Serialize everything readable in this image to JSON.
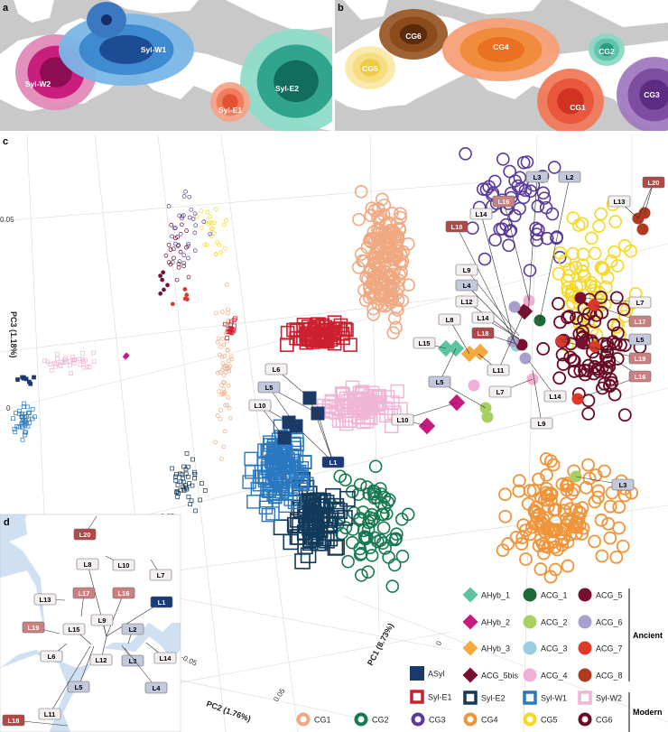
{
  "panels": {
    "a": {
      "letter": "a",
      "regions": [
        "Syl-W2",
        "Syl-W1",
        "Syl-E2",
        "Syl-E1"
      ],
      "colors": {
        "Syl-W2": "#c8187a",
        "Syl-W1": "#3a88d0",
        "Syl-E2": "#2aa088",
        "Syl-E1": "#f07a5a"
      }
    },
    "b": {
      "letter": "b",
      "regions": [
        "CG6",
        "CG5",
        "CG4",
        "CG2",
        "CG1",
        "CG3"
      ],
      "colors": {
        "CG6": "#8a4a1a",
        "CG5": "#f5dc80",
        "CG4": "#f08a3a",
        "CG2": "#5cc4aa",
        "CG1": "#e8553a",
        "CG3": "#7a4a9e"
      }
    },
    "c": {
      "letter": "c"
    },
    "d": {
      "letter": "d",
      "sites": [
        "L20",
        "L8",
        "L10",
        "L7",
        "L13",
        "L17",
        "L16",
        "L1",
        "L9",
        "L19",
        "L15",
        "L2",
        "L6",
        "L12",
        "L3",
        "L14",
        "L5",
        "L4",
        "L11",
        "L18"
      ]
    }
  },
  "chart_data": {
    "type": "scatter",
    "title": "",
    "projection": "3D PCA",
    "xlabel": "PC1 (8.73%)",
    "ylabel": "PC2 (1.76%)",
    "zlabel": "PC3 (1.18%)",
    "ticks": {
      "pc3": [
        "0.05",
        "0"
      ],
      "pc2": [
        "-0.05",
        "0.05"
      ],
      "pc1": [
        "0"
      ],
      "back": [
        "-0.05"
      ]
    },
    "point_labels": [
      "L3",
      "L2",
      "L20",
      "L16",
      "L13",
      "L14",
      "L18",
      "L9",
      "L4",
      "L12",
      "L8",
      "L14",
      "L18",
      "L15",
      "L11",
      "L5",
      "L7",
      "L10",
      "L14",
      "L9",
      "L7",
      "L17",
      "L5",
      "L19",
      "L16",
      "L3",
      "L6",
      "L5",
      "L10",
      "L1"
    ],
    "legend": {
      "ancient_heading": "Ancient",
      "modern_heading": "Modern",
      "ancient": [
        {
          "name": "AHyb_1",
          "shape": "diamond",
          "color": "#5cc4a0"
        },
        {
          "name": "ACG_1",
          "shape": "circle",
          "color": "#1e6a36"
        },
        {
          "name": "ACG_5",
          "shape": "circle",
          "color": "#7a1030"
        },
        {
          "name": "AHyb_2",
          "shape": "diamond",
          "color": "#c81a80"
        },
        {
          "name": "ACG_2",
          "shape": "circle",
          "color": "#a8d060"
        },
        {
          "name": "ACG_6",
          "shape": "circle",
          "color": "#a8a0cc"
        },
        {
          "name": "AHyb_3",
          "shape": "diamond",
          "color": "#f5aa40"
        },
        {
          "name": "ACG_3",
          "shape": "circle",
          "color": "#9ccce0"
        },
        {
          "name": "ACG_7",
          "shape": "circle",
          "color": "#e03828"
        },
        {
          "name": "ASyl",
          "shape": "filled-square",
          "color": "#1a3a6a"
        },
        {
          "name": "ACG_5bis",
          "shape": "diamond",
          "color": "#7a1030"
        },
        {
          "name": "ACG_4",
          "shape": "circle",
          "color": "#f0b0d4"
        },
        {
          "name": "ACG_8",
          "shape": "circle",
          "color": "#b03a20"
        }
      ],
      "modern": [
        {
          "name": "Syl-E1",
          "shape": "square",
          "color": "#cc2030"
        },
        {
          "name": "Syl-E2",
          "shape": "square",
          "color": "#123a5a"
        },
        {
          "name": "Syl-W1",
          "shape": "square",
          "color": "#2a78c0"
        },
        {
          "name": "Syl-W2",
          "shape": "square",
          "color": "#f0b4d4"
        },
        {
          "name": "CG1",
          "shape": "ring",
          "color": "#f0a880"
        },
        {
          "name": "CG2",
          "shape": "ring",
          "color": "#167a50"
        },
        {
          "name": "CG3",
          "shape": "ring",
          "color": "#5a3a9a"
        },
        {
          "name": "CG4",
          "shape": "ring",
          "color": "#f0943a"
        },
        {
          "name": "CG5",
          "shape": "ring",
          "color": "#f5d820"
        },
        {
          "name": "CG6",
          "shape": "ring",
          "color": "#6a0a24"
        }
      ]
    }
  },
  "label_colors": {
    "dark": "#b04848",
    "mid": "#c98080",
    "blue": "#c4c8dc",
    "navy": "#1a3a78",
    "plain": "#f4f0f0"
  }
}
